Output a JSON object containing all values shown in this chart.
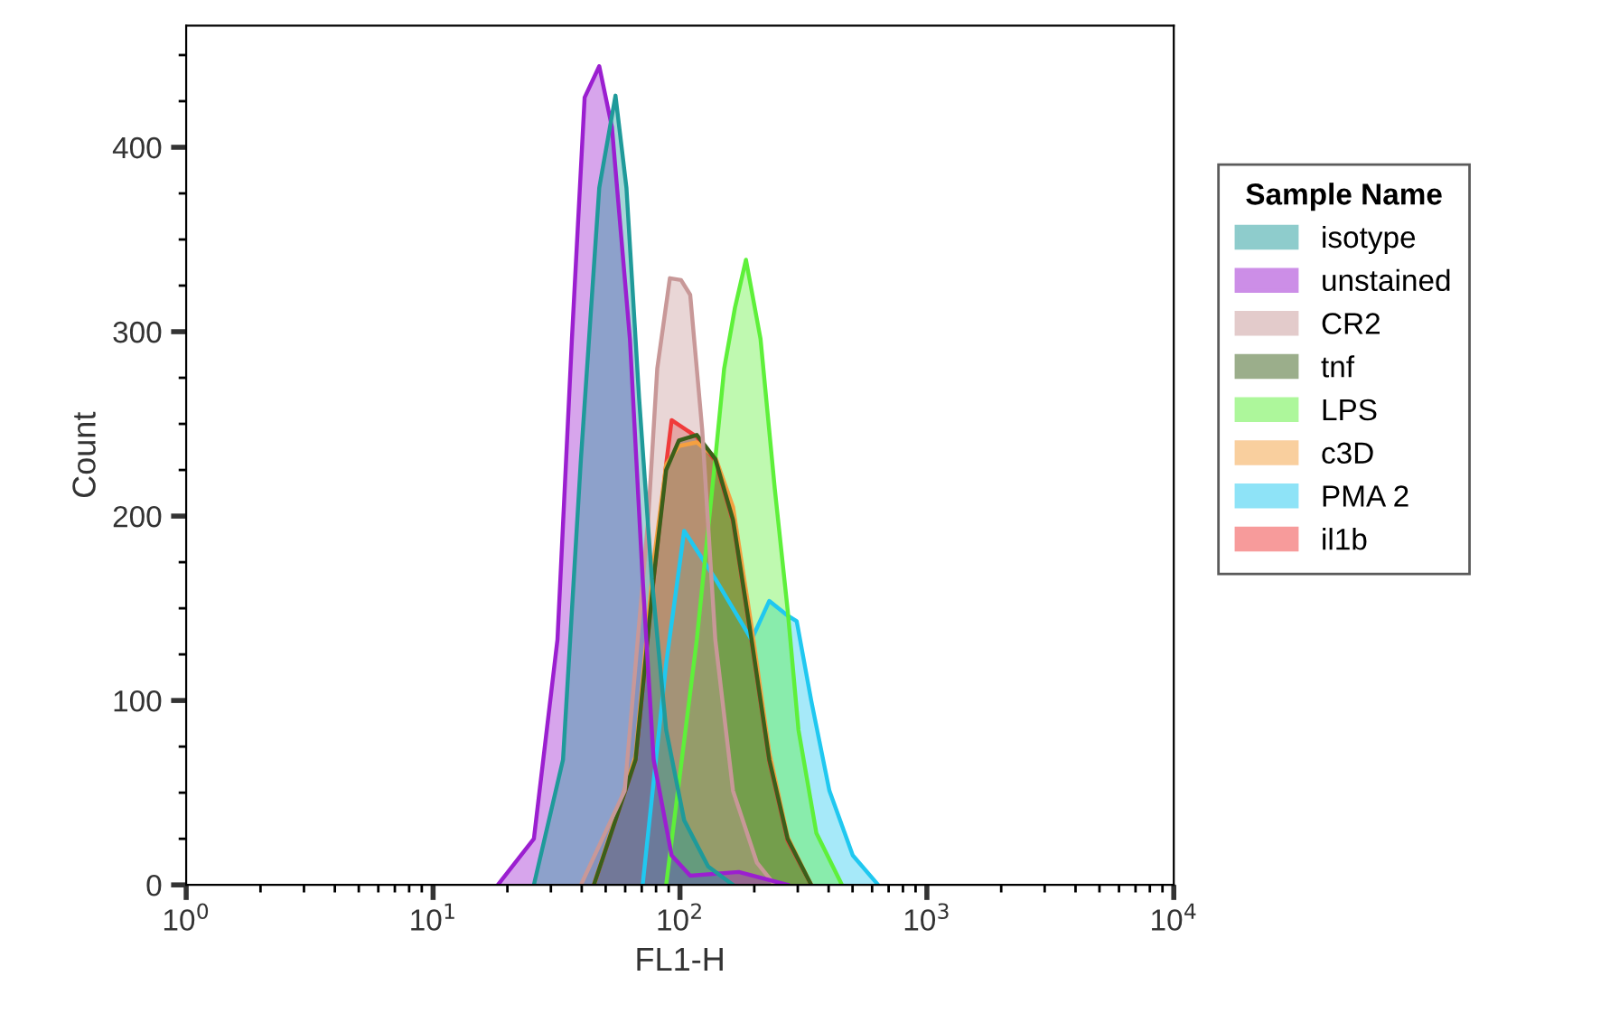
{
  "chart_data": {
    "type": "area",
    "xlabel": "FL1-H",
    "ylabel": "Count",
    "legend_title": "Sample Name",
    "legend": "right",
    "log": "x",
    "grid": false,
    "xlim": [
      1,
      10000
    ],
    "xticks": [
      {
        "value": 1,
        "label": "10$^{0}$"
      },
      {
        "value": 10,
        "label": "10$^{1}$"
      },
      {
        "value": 100,
        "label": "10$^{2}$"
      },
      {
        "value": 1000,
        "label": "10$^{3}$"
      },
      {
        "value": 10000,
        "label": "10$^{4}$"
      }
    ],
    "ylim": [
      0,
      466
    ],
    "yticks": [
      0,
      100,
      200,
      300,
      400
    ],
    "series": [
      {
        "name": "isotype",
        "color": "#1f9a9a",
        "x": [
          25.6,
          33.6,
          39.7,
          47.1,
          54.8,
          60.7,
          68.3,
          76.9,
          87.9,
          104,
          130,
          164
        ],
        "values": [
          0,
          68,
          231,
          378,
          428,
          378,
          264,
          166,
          84,
          35,
          10,
          0
        ]
      },
      {
        "name": "unstained",
        "color": "#9b1fd0",
        "x": [
          18.3,
          25.6,
          31.9,
          36.5,
          41.1,
          47.1,
          53.0,
          62.7,
          70.6,
          78.2,
          92.5,
          110,
          173,
          273
        ],
        "values": [
          0,
          25,
          133,
          296,
          427,
          444,
          411,
          296,
          166,
          68,
          16,
          5,
          7,
          0
        ]
      },
      {
        "name": "CR2",
        "color": "#c89898",
        "x": [
          39.7,
          59.7,
          74.3,
          80.9,
          91.0,
          101,
          110,
          123,
          139,
          164,
          205,
          242
        ],
        "values": [
          0,
          51,
          198,
          280,
          329,
          328,
          320,
          247,
          133,
          51,
          12,
          0
        ]
      },
      {
        "name": "tnf",
        "color": "#3a5f1a",
        "x": [
          44.8,
          66.1,
          78.2,
          87.9,
          99,
          117,
          139,
          164,
          195,
          230,
          273,
          340
        ],
        "values": [
          0,
          68,
          166,
          225,
          241,
          244,
          231,
          198,
          133,
          68,
          25,
          0
        ]
      },
      {
        "name": "LPS",
        "color": "#5ef03a",
        "x": [
          87.9,
          117,
          139,
          151,
          167,
          185,
          212,
          242,
          273,
          302,
          357,
          453
        ],
        "values": [
          0,
          133,
          231,
          280,
          313,
          339,
          296,
          215,
          149,
          84,
          28,
          0
        ]
      },
      {
        "name": "c3D",
        "color": "#f5a040",
        "x": [
          44.8,
          66.1,
          78.2,
          87.9,
          99,
          117,
          139,
          164,
          195,
          230,
          273,
          340
        ],
        "values": [
          0,
          70,
          175,
          228,
          238,
          240,
          232,
          205,
          140,
          72,
          26,
          0
        ]
      },
      {
        "name": "PMA 2",
        "color": "#20c8f0",
        "x": [
          70.6,
          87.9,
          104,
          139,
          195,
          230,
          273,
          297,
          340,
          403,
          501,
          635
        ],
        "values": [
          0,
          120,
          192,
          166,
          133,
          154,
          146,
          143,
          100,
          51,
          16,
          0
        ]
      },
      {
        "name": "il1b",
        "color": "#f03a3a",
        "x": [
          44.8,
          66.1,
          78.2,
          87.9,
          92.5,
          117,
          139,
          164,
          195,
          230,
          273,
          340
        ],
        "values": [
          0,
          68,
          166,
          228,
          252,
          243,
          230,
          197,
          132,
          67,
          24,
          0
        ]
      }
    ]
  }
}
